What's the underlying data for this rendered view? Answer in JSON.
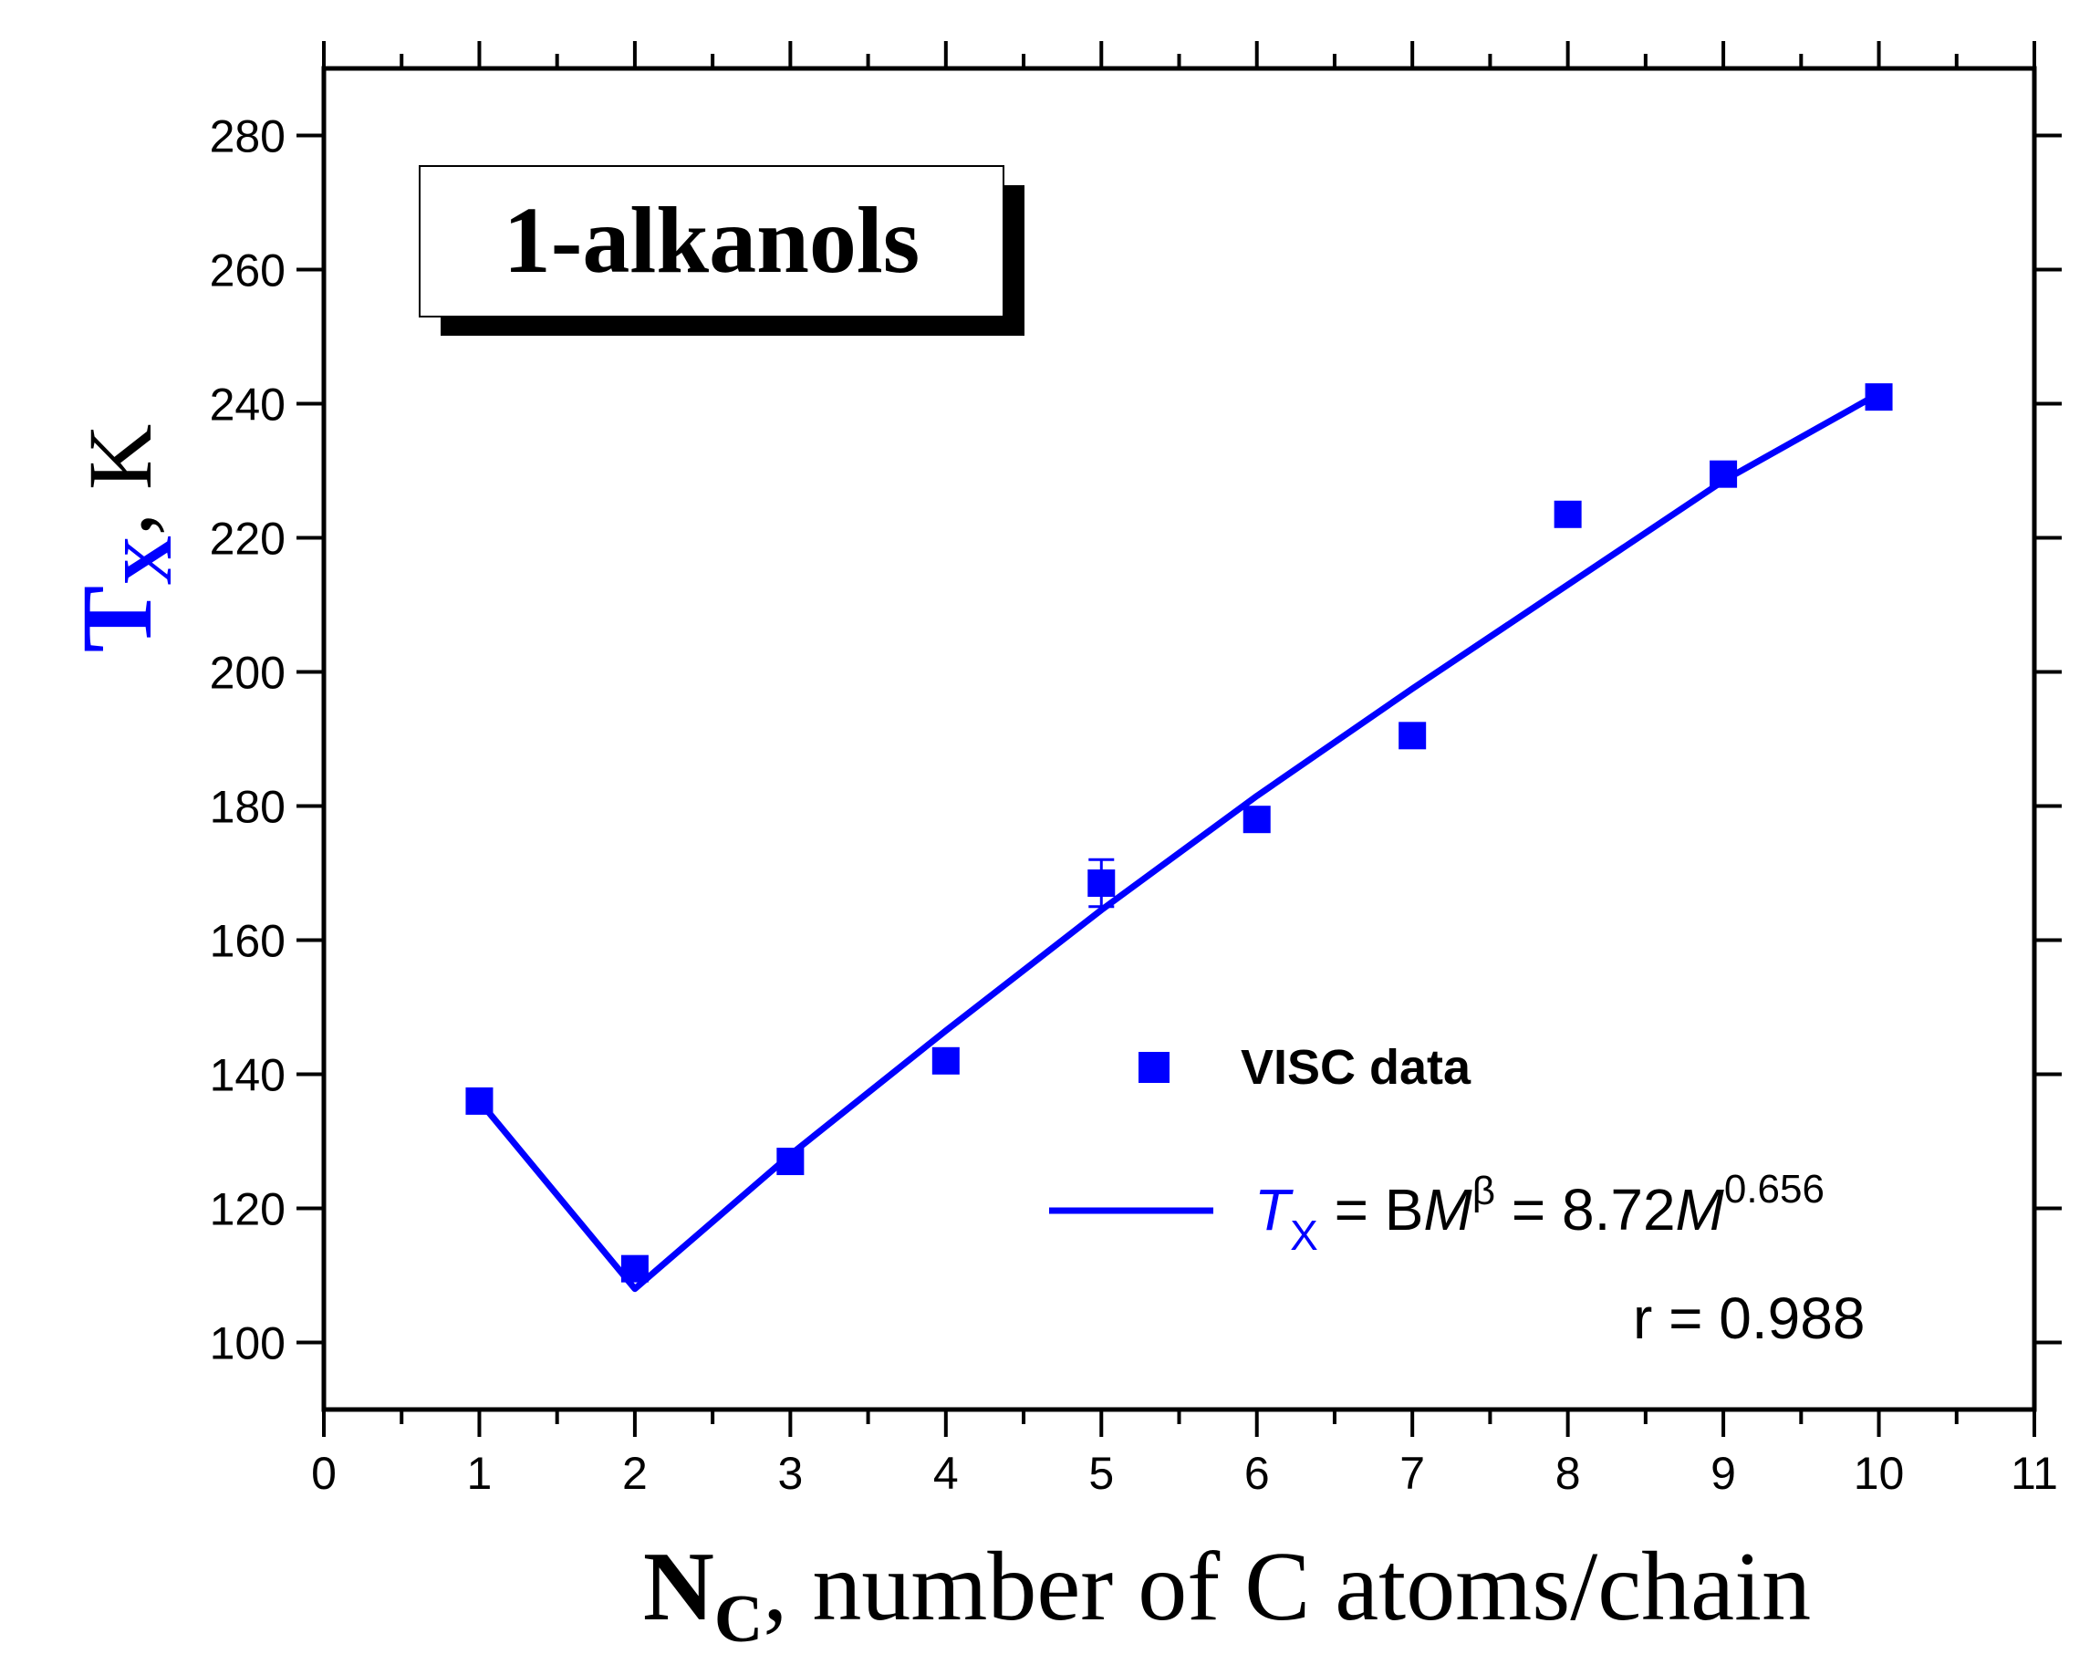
{
  "chart_data": {
    "type": "scatter",
    "title": "1-alkanols",
    "xlabel": {
      "main": "N",
      "sub": "C",
      "rest": ", number of C atoms/chain"
    },
    "ylabel": {
      "main": "T",
      "sub": "X",
      "rest": ", K"
    },
    "xlim": [
      0,
      11
    ],
    "ylim": [
      90,
      290
    ],
    "x_ticks": [
      0,
      1,
      2,
      3,
      4,
      5,
      6,
      7,
      8,
      9,
      10,
      11
    ],
    "y_ticks": [
      100,
      120,
      140,
      160,
      180,
      200,
      220,
      240,
      260,
      280
    ],
    "colors": {
      "series": "#0000ff",
      "axis": "#000000"
    },
    "series": [
      {
        "name": "VISC data",
        "kind": "scatter",
        "marker": "square",
        "x": [
          1,
          2,
          3,
          4,
          5,
          6,
          7,
          8,
          9,
          10
        ],
        "y": [
          136,
          111,
          127,
          142,
          168.5,
          178,
          190.5,
          223.5,
          229.5,
          241
        ],
        "yerr": [
          0,
          0,
          0,
          0,
          3.5,
          0,
          1.5,
          0,
          0,
          0
        ]
      },
      {
        "name": "fit",
        "kind": "line",
        "x": [
          1,
          2,
          3,
          4,
          5,
          6,
          7,
          8,
          9,
          10
        ],
        "y": [
          136,
          108,
          128,
          146.5,
          164.5,
          181.5,
          197.5,
          213,
          228.5,
          241.5
        ]
      }
    ],
    "legend": {
      "scatter_label": "VISC data",
      "fit_label": {
        "t": "T",
        "sub": "X",
        "eq1": " = B",
        "m1": "M",
        "sup1": "β",
        "eq2": " = 8.72",
        "m2": "M",
        "sup2": "0.656"
      },
      "r_label": "r = 0.988",
      "placement": "bottom-right"
    }
  }
}
